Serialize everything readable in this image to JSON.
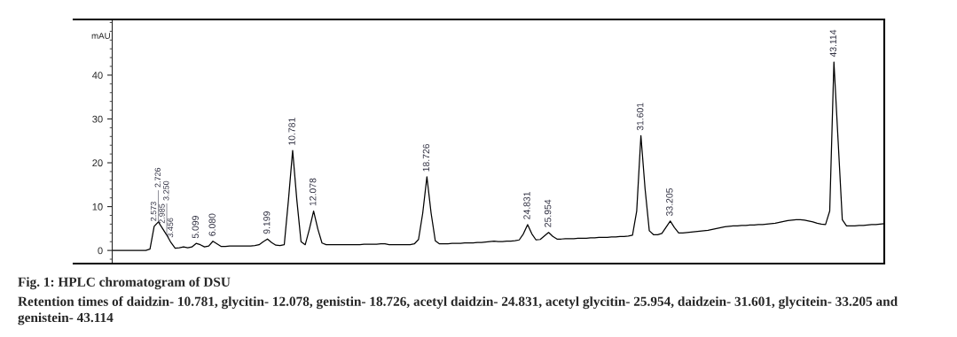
{
  "chart_data": {
    "type": "line",
    "title": "Fig. 1: HPLC chromatogram of DSU",
    "ylabel": "mAU",
    "annotations": [
      {
        "text": "2.573",
        "y": 5.5
      },
      {
        "text": "2.726",
        "y": 6.5
      },
      {
        "text": "2.985",
        "y": 5.0
      },
      {
        "text": "3.250",
        "y": 3.5
      },
      {
        "text": "3.456",
        "y": 1.8
      },
      {
        "text": "5.099",
        "y": 1.6
      },
      {
        "text": "6.080",
        "y": 2.1
      },
      {
        "text": "9.199",
        "y": 2.6
      },
      {
        "text": "10.781",
        "y": 22.8
      },
      {
        "text": "12.078",
        "y": 9.0
      },
      {
        "text": "18.726",
        "y": 16.8
      },
      {
        "text": "24.831",
        "y": 5.9
      },
      {
        "text": "25.954",
        "y": 4.1
      },
      {
        "text": "31.601",
        "y": 26.2
      },
      {
        "text": "33.205",
        "y": 6.7
      },
      {
        "text": "43.114",
        "y": 43.0
      },
      "Retention times of daidzin- 10.781, glycitin- 12.078, genistin- 18.726, acetyl daidzin- 24.831, acetyl glycitin- 25.954, daidzein- 31.601, glycitein- 33.205 and genistein- 43.114"
    ],
    "categories": [
      null,
      null,
      null,
      null,
      null,
      null,
      null,
      null,
      null,
      null,
      null,
      null,
      null,
      null,
      null,
      null,
      null,
      null,
      null,
      null,
      null,
      null,
      null,
      null,
      null,
      null,
      null,
      null,
      null,
      null,
      null,
      null,
      null,
      null,
      null,
      null,
      null,
      null,
      null,
      null,
      null,
      null,
      null,
      null,
      null,
      null,
      null,
      null,
      null,
      null,
      null,
      null,
      null,
      null,
      null,
      null,
      null,
      null,
      null,
      null,
      null,
      null,
      null,
      null,
      null,
      null,
      null,
      null,
      null,
      null,
      null,
      null,
      null,
      null,
      null,
      null,
      null,
      null,
      null,
      null,
      null,
      null,
      null,
      null,
      null,
      null,
      null,
      null,
      null,
      null,
      null,
      null,
      null,
      null,
      null,
      null,
      null,
      null,
      null,
      null,
      null,
      null,
      null,
      null,
      null,
      null,
      null,
      null,
      null,
      null,
      null,
      null,
      null,
      null,
      null,
      null,
      null,
      null,
      null,
      null,
      null,
      null,
      null,
      null,
      null,
      null,
      null,
      null,
      null,
      null,
      null,
      null,
      null,
      null,
      null,
      null,
      null,
      null,
      null,
      null,
      null,
      null,
      null,
      null,
      null,
      null,
      null,
      null,
      null,
      null,
      null,
      null,
      null,
      null,
      null,
      null,
      null,
      null,
      null,
      null,
      null,
      null,
      null,
      null,
      null,
      null,
      null,
      null,
      null,
      null,
      null,
      null,
      null,
      null,
      null,
      null,
      null,
      null,
      null,
      null,
      null,
      null,
      null,
      null,
      null
    ],
    "series": [
      {
        "color": "#000000",
        "values": [
          0,
          0,
          0,
          0,
          0,
          0,
          0,
          0,
          0,
          0.3,
          5.5,
          6.5,
          5.0,
          3.5,
          1.8,
          0.5,
          0.6,
          0.8,
          0.6,
          0.8,
          1.6,
          1.3,
          0.8,
          1.0,
          2.1,
          1.5,
          0.9,
          0.9,
          1.0,
          1.0,
          1.0,
          1.0,
          1.0,
          1.0,
          1.1,
          1.3,
          2.0,
          2.6,
          1.8,
          1.2,
          1.1,
          1.3,
          11.5,
          22.8,
          11.5,
          2.0,
          1.3,
          4.9,
          9.0,
          4.9,
          1.7,
          1.3,
          1.3,
          1.3,
          1.3,
          1.3,
          1.3,
          1.3,
          1.3,
          1.3,
          1.4,
          1.4,
          1.4,
          1.4,
          1.5,
          1.5,
          1.3,
          1.3,
          1.3,
          1.3,
          1.3,
          1.3,
          1.5,
          2.5,
          8.5,
          16.8,
          8.5,
          2.2,
          1.5,
          1.5,
          1.5,
          1.6,
          1.6,
          1.6,
          1.7,
          1.7,
          1.7,
          1.8,
          1.8,
          1.9,
          2.0,
          2.1,
          2.0,
          2.0,
          2.1,
          2.1,
          2.2,
          2.4,
          3.8,
          5.9,
          3.8,
          2.4,
          2.5,
          3.3,
          4.1,
          3.2,
          2.6,
          2.6,
          2.7,
          2.7,
          2.7,
          2.8,
          2.8,
          2.8,
          2.9,
          2.9,
          3.0,
          3.0,
          3.0,
          3.1,
          3.1,
          3.2,
          3.2,
          3.3,
          3.5,
          9.0,
          26.2,
          14.0,
          4.5,
          3.6,
          3.6,
          3.9,
          5.3,
          6.7,
          5.2,
          4.0,
          4.0,
          4.1,
          4.2,
          4.3,
          4.4,
          4.5,
          4.6,
          4.8,
          5.0,
          5.2,
          5.4,
          5.5,
          5.6,
          5.6,
          5.7,
          5.7,
          5.8,
          5.8,
          5.9,
          5.9,
          6.0,
          6.1,
          6.2,
          6.4,
          6.6,
          6.8,
          6.9,
          7.0,
          7.0,
          6.9,
          6.7,
          6.5,
          6.2,
          6.0,
          5.9,
          9.0,
          43.0,
          25.0,
          7.0,
          5.6,
          5.6,
          5.6,
          5.7,
          5.7,
          5.8,
          5.9,
          5.9,
          6.0,
          6.1
        ]
      }
    ],
    "ylim": [
      -3.0,
      52.7
    ],
    "yticks": [
      0,
      10,
      20,
      30,
      40
    ],
    "tick_labels": "y"
  }
}
